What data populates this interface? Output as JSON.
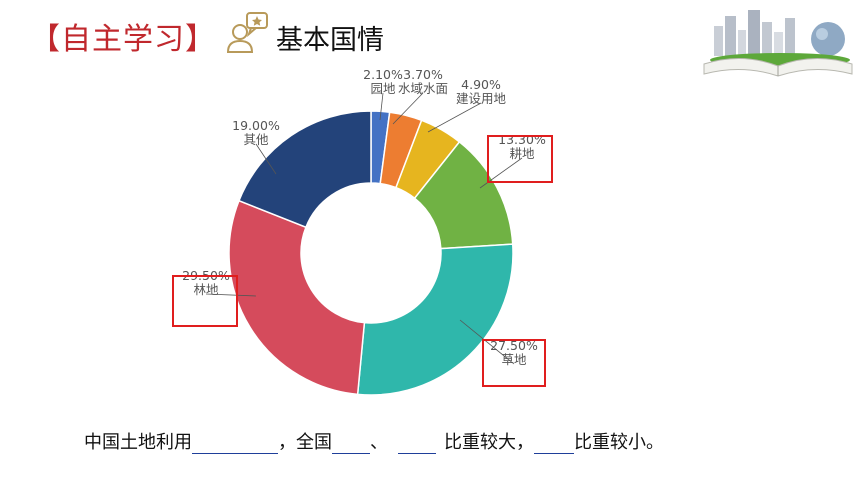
{
  "header": {
    "title": "【自主学习】",
    "subtitle": "基本国情"
  },
  "icons": {
    "learning": "user-with-star-speech-bubble-icon",
    "decoration": "open-book-city-globe-image"
  },
  "colors": {
    "title_red": "#c0282d",
    "highlight_box": "#e01e1e",
    "blank_underline": "#1f3f9a"
  },
  "chart_data": {
    "type": "pie",
    "donut": true,
    "unit": "%",
    "slices": [
      {
        "label": "园地",
        "value": 2.1,
        "display": "2.10%",
        "color": "#4472c4"
      },
      {
        "label": "水域水面",
        "value": 3.7,
        "display": "3.70%",
        "color": "#ed7d31"
      },
      {
        "label": "建设用地",
        "value": 4.9,
        "display": "4.90%",
        "color": "#e6b51f"
      },
      {
        "label": "耕地",
        "value": 13.3,
        "display": "13.30%",
        "color": "#70b244",
        "highlighted": true
      },
      {
        "label": "草地",
        "value": 27.5,
        "display": "27.50%",
        "color": "#2fb7ab",
        "highlighted": true
      },
      {
        "label": "林地",
        "value": 29.5,
        "display": "29.50%",
        "color": "#d54b5c",
        "highlighted": true
      },
      {
        "label": "其他",
        "value": 19.0,
        "display": "19.00%",
        "color": "#23437a"
      }
    ]
  },
  "question": {
    "part1": "中国土地利用",
    "part2": "，全国",
    "part3": "、",
    "part4": "比重较大，",
    "part5": "比重较小。"
  }
}
